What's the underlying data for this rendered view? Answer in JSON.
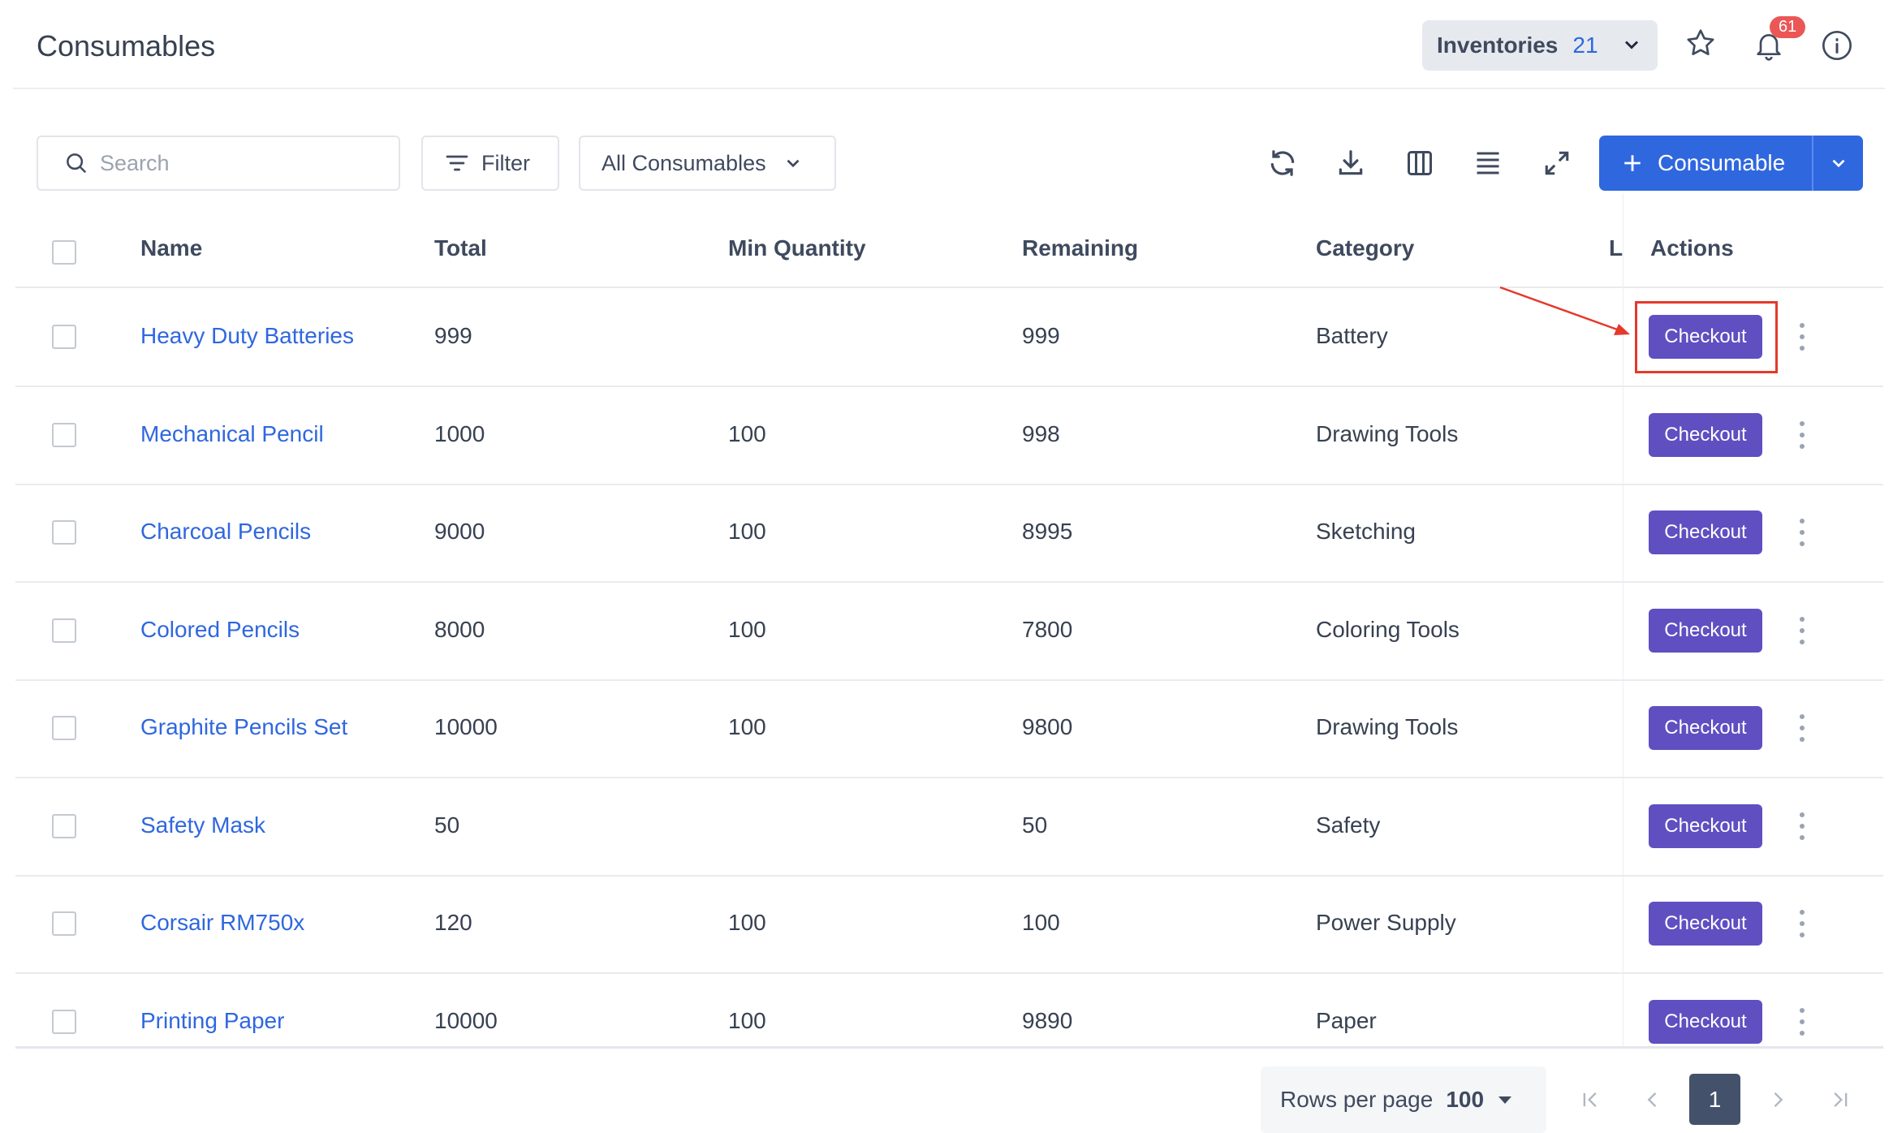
{
  "header": {
    "title": "Consumables",
    "inventories_label": "Inventories",
    "inventories_count": "21",
    "notifications_count": "61"
  },
  "toolbar": {
    "search_placeholder": "Search",
    "search_value": "",
    "filter_label": "Filter",
    "view_select": "All Consumables",
    "add_label": "Consumable"
  },
  "table": {
    "columns": [
      "Name",
      "Total",
      "Min Quantity",
      "Remaining",
      "Category",
      "L",
      "Actions"
    ],
    "action_label": "Checkout",
    "rows": [
      {
        "name": "Heavy Duty Batteries",
        "total": "999",
        "min": "",
        "remaining": "999",
        "category": "Battery"
      },
      {
        "name": "Mechanical Pencil",
        "total": "1000",
        "min": "100",
        "remaining": "998",
        "category": "Drawing Tools"
      },
      {
        "name": "Charcoal Pencils",
        "total": "9000",
        "min": "100",
        "remaining": "8995",
        "category": "Sketching"
      },
      {
        "name": "Colored Pencils",
        "total": "8000",
        "min": "100",
        "remaining": "7800",
        "category": "Coloring Tools"
      },
      {
        "name": "Graphite Pencils Set",
        "total": "10000",
        "min": "100",
        "remaining": "9800",
        "category": "Drawing Tools"
      },
      {
        "name": "Safety Mask",
        "total": "50",
        "min": "",
        "remaining": "50",
        "category": "Safety"
      },
      {
        "name": "Corsair RM750x",
        "total": "120",
        "min": "100",
        "remaining": "100",
        "category": "Power Supply"
      },
      {
        "name": "Printing Paper",
        "total": "10000",
        "min": "100",
        "remaining": "9890",
        "category": "Paper"
      }
    ]
  },
  "pagination": {
    "rows_per_page_label": "Rows per page",
    "rows_per_page": "100",
    "current_page": "1"
  },
  "colors": {
    "primary": "#2f67df",
    "checkout": "#5f4fc1",
    "badge": "#eb5757",
    "highlight": "#e5392b"
  }
}
